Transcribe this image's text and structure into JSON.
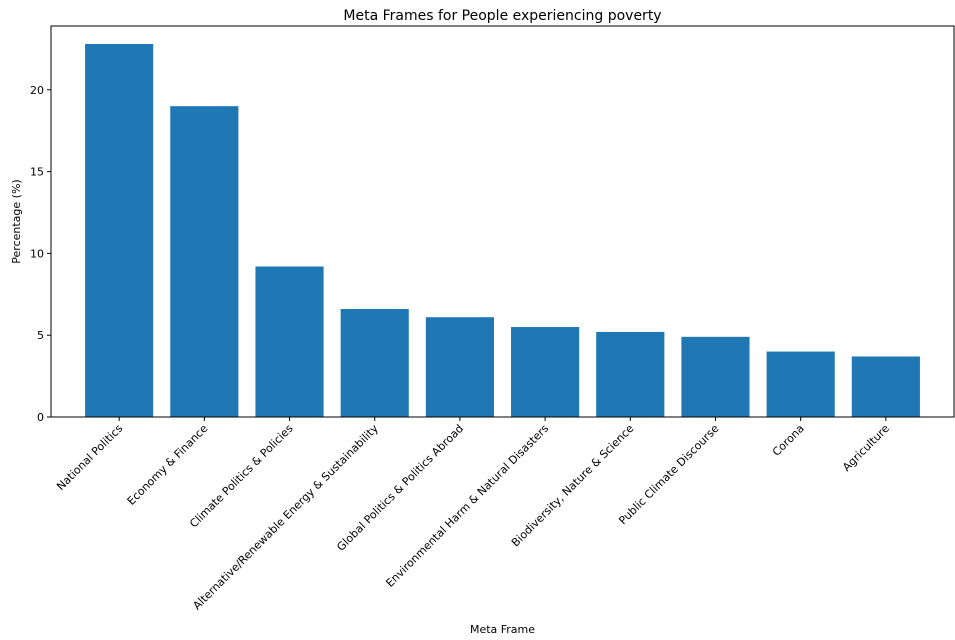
{
  "chart_data": {
    "type": "bar",
    "title": "Meta Frames for People experiencing poverty",
    "xlabel": "Meta Frame",
    "ylabel": "Percentage (%)",
    "categories": [
      "National Politics",
      "Economy & Finance",
      "Climate Politics & Policies",
      "Alternative/Renewable Energy & Sustainability",
      "Global Politics & Politics Abroad",
      "Environmental Harm & Natural Disasters",
      "Biodiversity, Nature & Science",
      "Public Climate Discourse",
      "Corona",
      "Agriculture"
    ],
    "values": [
      22.8,
      19.0,
      9.2,
      6.6,
      6.1,
      5.5,
      5.2,
      4.9,
      4.0,
      3.7
    ],
    "yticks": [
      0,
      5,
      10,
      15,
      20
    ],
    "ylim": [
      0,
      23.9
    ],
    "bar_color": "#1f77b4",
    "grid": false,
    "legend": "none"
  }
}
